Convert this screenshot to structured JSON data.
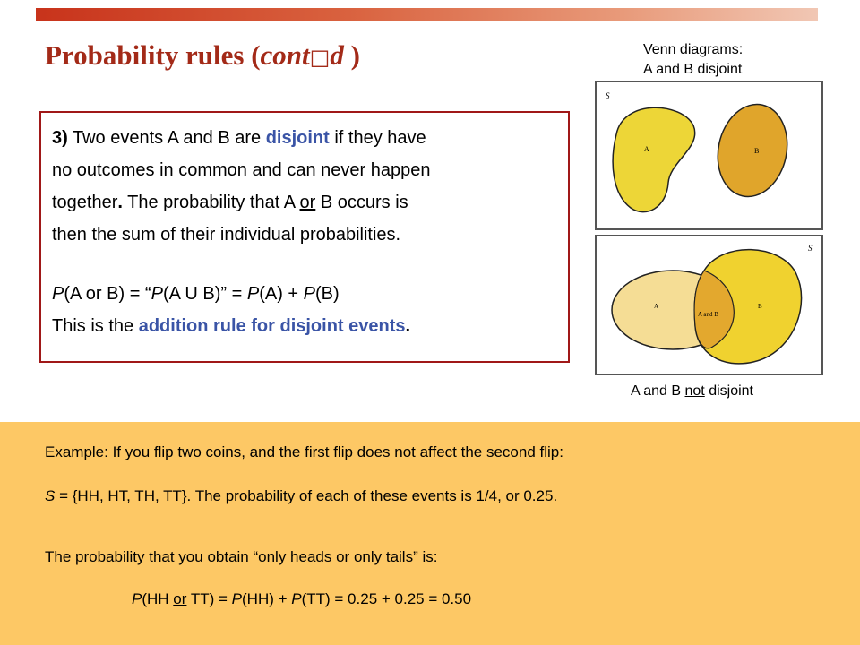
{
  "title": {
    "prefix": "Probability rules (",
    "italic": "cont",
    "glyph": "□",
    "italic2": "d",
    "suffix": " )"
  },
  "rule": {
    "number": "3)",
    "l1a": " Two events A and B are ",
    "l1_disjoint": "disjoint",
    "l1b": " if they have",
    "l2": "no outcomes in common and can never happen",
    "l3a": "together",
    "l3_dot": ".",
    "l3b": " The probability that A ",
    "l3_or": "or",
    "l3c": " B occurs is",
    "l4": "then the sum of their individual probabilities.",
    "f_p1": "P",
    "f_a": "(A or B) = “",
    "f_p2": "P",
    "f_b": "(A U B)” = ",
    "f_p3": "P",
    "f_c": "(A) + ",
    "f_p4": "P",
    "f_d": "(B)",
    "l6a": "This is the ",
    "l6_rule": "addition rule for disjoint events",
    "l6_dot": "."
  },
  "venn": {
    "caption_line1": "Venn diagrams:",
    "caption_line2": "A and B disjoint",
    "d1_s": "S",
    "d1_a": "A",
    "d1_b": "B",
    "d2_s": "S",
    "d2_a": "A",
    "d2_ab": "A and B",
    "d2_b": "B",
    "bottom_prefix": "A and B ",
    "bottom_not": "not",
    "bottom_suffix": " disjoint",
    "colors": {
      "a": "#edd637",
      "b": "#e0a52b",
      "a_light": "#f5dd95",
      "b2": "#f0d22f",
      "overlap": "#e3a82e"
    }
  },
  "example": {
    "line1": "Example: If you flip two coins, and the first flip does not affect the second flip:",
    "l2_s": "S",
    "l2_rest": " = {HH, HT, TH, TT}. The probability of each of these events is 1/4, or 0.25.",
    "l3a": "The probability that you obtain “only heads ",
    "l3_or": "or",
    "l3b": " only tails” is:",
    "f_p1": "P",
    "f_a": "(HH ",
    "f_or": "or",
    "f_b": " TT) = ",
    "f_p2": "P",
    "f_c": "(HH) + ",
    "f_p3": "P",
    "f_d": "(TT) = 0.25 + 0.25 = 0.50"
  }
}
